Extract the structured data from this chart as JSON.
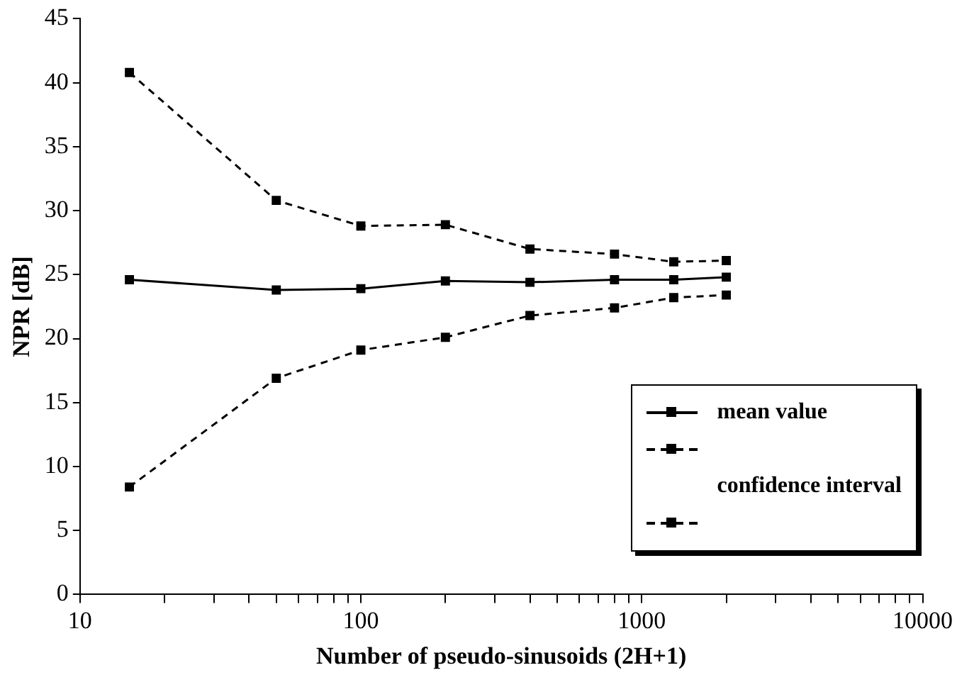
{
  "chart_data": {
    "type": "line",
    "xlabel": "Number of pseudo-sinusoids (2H+1)",
    "ylabel": "NPR [dB]",
    "x": [
      15,
      50,
      100,
      200,
      400,
      800,
      1300,
      2000
    ],
    "series": [
      {
        "name": "mean value",
        "color": "#000000",
        "line_style": "solid",
        "values": [
          24.6,
          23.8,
          23.9,
          24.5,
          24.4,
          24.6,
          24.6,
          24.8
        ]
      },
      {
        "name": "confidence interval",
        "color": "#000000",
        "line_style": "dashed",
        "values": [
          8.4,
          16.9,
          19.1,
          20.1,
          21.8,
          22.4,
          23.2,
          23.4
        ]
      },
      {
        "color": "#000000",
        "line_style": "dashed",
        "values": [
          40.8,
          30.8,
          28.8,
          28.9,
          27.0,
          26.6,
          26.0,
          26.1
        ]
      }
    ],
    "log": "x",
    "xlim": [
      10,
      10000
    ],
    "xticks": [
      10,
      {
        "value": 20,
        "label": null
      },
      {
        "value": 30,
        "label": null
      },
      {
        "value": 40,
        "label": null
      },
      {
        "value": 50,
        "label": null
      },
      {
        "value": 60,
        "label": null
      },
      {
        "value": 70,
        "label": null
      },
      {
        "value": 80,
        "label": null
      },
      {
        "value": 90,
        "label": null
      },
      100,
      {
        "value": 200,
        "label": null
      },
      {
        "value": 300,
        "label": null
      },
      {
        "value": 400,
        "label": null
      },
      {
        "value": 500,
        "label": null
      },
      {
        "value": 600,
        "label": null
      },
      {
        "value": 700,
        "label": null
      },
      {
        "value": 800,
        "label": null
      },
      {
        "value": 900,
        "label": null
      },
      1000,
      {
        "value": 2000,
        "label": null
      },
      {
        "value": 3000,
        "label": null
      },
      {
        "value": 4000,
        "label": null
      },
      {
        "value": 5000,
        "label": null
      },
      {
        "value": 6000,
        "label": null
      },
      {
        "value": 7000,
        "label": null
      },
      {
        "value": 8000,
        "label": null
      },
      {
        "value": 9000,
        "label": null
      },
      10000
    ],
    "ylim": [
      0,
      45
    ],
    "yticks": [
      0,
      5,
      10,
      15,
      20,
      25,
      30,
      35,
      40,
      45
    ],
    "grid": false,
    "legend": "bottom right",
    "marker": "square"
  }
}
